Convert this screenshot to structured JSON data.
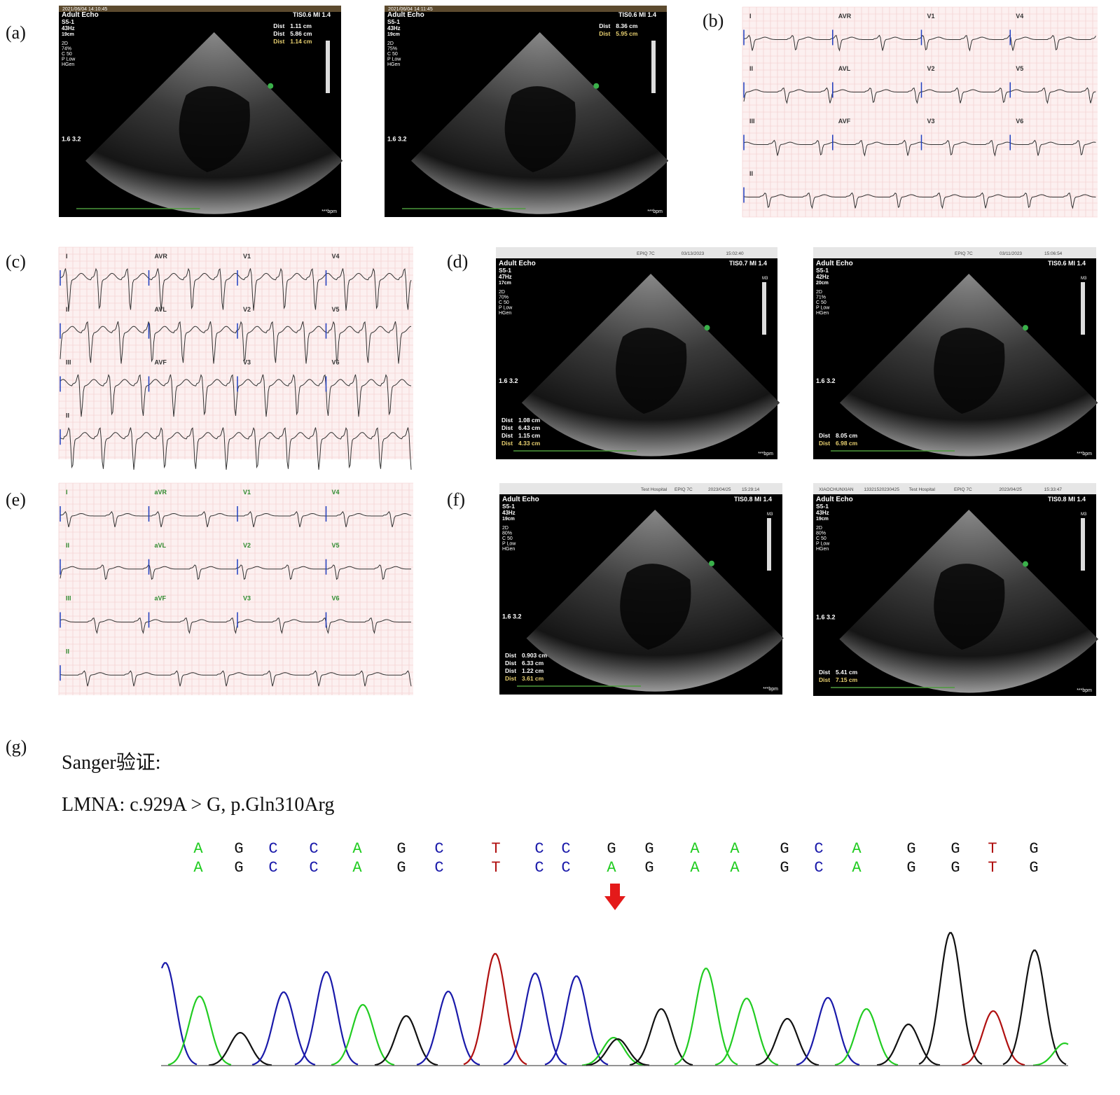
{
  "panel_labels": [
    "(a)",
    "(b)",
    "(c)",
    "(d)",
    "(e)",
    "(f)",
    "(g)"
  ],
  "echo": [
    {
      "date": "2021/06/04 14:10:45",
      "header": "Adult Echo",
      "probe": "S5-1",
      "freq": "43Hz",
      "depth": "19cm",
      "settings": [
        "2D",
        "74%",
        "C 50",
        "P Low",
        "HGen"
      ],
      "tis": "TIS0.6  MI 1.4",
      "meas_pos": "top",
      "measurements": [
        {
          "label": "Dist",
          "value": "1.11 cm"
        },
        {
          "label": "Dist",
          "value": "5.86 cm"
        },
        {
          "label": "Dist",
          "value": "1.14 cm"
        }
      ],
      "scale": "1.6 3.2",
      "bpm": "***bpm"
    },
    {
      "date": "2021/06/04 14:11:45",
      "header": "Adult Echo",
      "probe": "S5-1",
      "freq": "43Hz",
      "depth": "19cm",
      "settings": [
        "2D",
        "75%",
        "C 50",
        "P Low",
        "HGen"
      ],
      "tis": "TIS0.6  MI 1.4",
      "meas_pos": "top",
      "measurements": [
        {
          "label": "Dist",
          "value": "8.36 cm"
        },
        {
          "label": "Dist",
          "value": "5.95 cm"
        }
      ],
      "scale": "1.6 3.2",
      "bpm": "***bpm"
    },
    {
      "top_strip": [
        "EPIQ 7C",
        "03/13/2023",
        "15:02:40"
      ],
      "header": "Adult Echo",
      "probe": "S5-1",
      "freq": "47Hz",
      "depth": "17cm",
      "settings": [
        "2D",
        "70%",
        "C 50",
        "P Low",
        "HGen"
      ],
      "tis": "TIS0.7  MI 1.4",
      "marker": "M3",
      "meas_pos": "bottom",
      "measurements": [
        {
          "label": "Dist",
          "value": "1.08 cm"
        },
        {
          "label": "Dist",
          "value": "6.43 cm"
        },
        {
          "label": "Dist",
          "value": "1.15 cm"
        },
        {
          "label": "Dist",
          "value": "4.33 cm"
        }
      ],
      "scale": "1.6 3.2",
      "bpm": "***bpm"
    },
    {
      "top_strip": [
        "EPIQ 7C",
        "03/11/2023",
        "15:06:54"
      ],
      "header": "Adult Echo",
      "probe": "S5-1",
      "freq": "42Hz",
      "depth": "20cm",
      "settings": [
        "2D",
        "71%",
        "C 50",
        "P Low",
        "HGen"
      ],
      "tis": "TIS0.6  MI 1.4",
      "marker": "M3",
      "meas_pos": "bottom",
      "measurements": [
        {
          "label": "Dist",
          "value": "8.05 cm"
        },
        {
          "label": "Dist",
          "value": "6.98 cm"
        }
      ],
      "scale": "1.6 3.2",
      "bpm": "***bpm"
    },
    {
      "top_strip": [
        "Test Hospital",
        "EPIQ 7C",
        "2023/04/25",
        "15:29:14"
      ],
      "header": "Adult Echo",
      "probe": "S5-1",
      "freq": "43Hz",
      "depth": "19cm",
      "settings": [
        "2D",
        "80%",
        "C 50",
        "P Low",
        "HGen"
      ],
      "tis": "TIS0.8  MI 1.4",
      "marker": "M3",
      "meas_pos": "bottom",
      "measurements": [
        {
          "label": "Dist",
          "value": "0.903 cm"
        },
        {
          "label": "Dist",
          "value": "6.33 cm"
        },
        {
          "label": "Dist",
          "value": "1.22 cm"
        },
        {
          "label": "Dist",
          "value": "3.61 cm"
        }
      ],
      "scale": "1.6 3.2",
      "bpm": "***bpm"
    },
    {
      "top_strip": [
        "XIAOCHUNXIAN",
        "13321520230425",
        "Test Hospital",
        "EPIQ 7C",
        "2023/04/25",
        "15:33:47"
      ],
      "header": "Adult Echo",
      "probe": "S5-1",
      "freq": "43Hz",
      "depth": "19cm",
      "settings": [
        "2D",
        "80%",
        "C 50",
        "P Low",
        "HGen"
      ],
      "tis": "TIS0.8  MI 1.4",
      "marker": "M3",
      "meas_pos": "bottom",
      "measurements": [
        {
          "label": "Dist",
          "value": "5.41 cm"
        },
        {
          "label": "Dist",
          "value": "7.15 cm"
        }
      ],
      "scale": "1.6 3.2",
      "bpm": "***bpm"
    }
  ],
  "ecg": [
    {
      "label_color": "#333333",
      "leads": [
        "I",
        "AVR",
        "V1",
        "V4",
        "II",
        "AVL",
        "V2",
        "V5",
        "III",
        "AVF",
        "V3",
        "V6",
        "II"
      ]
    },
    {
      "label_color": "#333333",
      "leads": [
        "I",
        "AVR",
        "V1",
        "V4",
        "II",
        "AVL",
        "V2",
        "V5",
        "III",
        "AVF",
        "V3",
        "V6",
        "II"
      ]
    },
    {
      "label_color": "#2e8b2e",
      "leads": [
        "I",
        "aVR",
        "V1",
        "V4",
        "II",
        "aVL",
        "V2",
        "V5",
        "III",
        "aVF",
        "V3",
        "V6",
        "II"
      ]
    }
  ],
  "sanger": {
    "title": "Sanger验证:",
    "variant": "LMNA: c.929A > G, p.Gln310Arg",
    "colors": {
      "A": "#22cc22",
      "G": "#111111",
      "C": "#1a1aaa",
      "T": "#b01010"
    },
    "reference": [
      "A",
      "G",
      "C",
      "C",
      "A",
      "G",
      "C",
      "T",
      "C",
      "C",
      "G",
      "G",
      "A",
      "A",
      "G",
      "C",
      "A",
      "G",
      "G",
      "T",
      "G"
    ],
    "sample": [
      "A",
      "G",
      "C",
      "C",
      "A",
      "G",
      "C",
      "T",
      "C",
      "C",
      "A",
      "G",
      "A",
      "A",
      "G",
      "C",
      "A",
      "G",
      "G",
      "T",
      "G"
    ]
  }
}
